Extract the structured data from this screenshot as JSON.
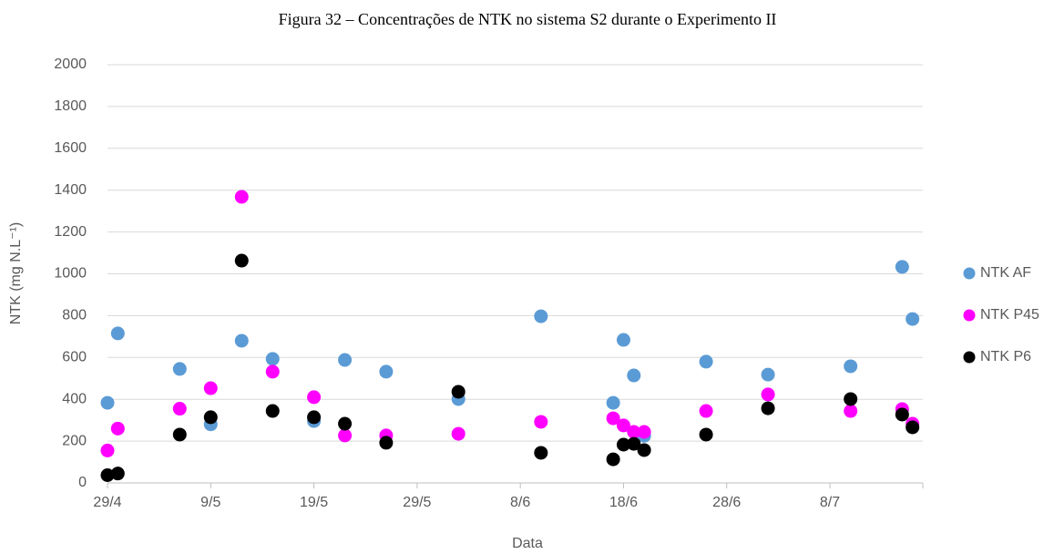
{
  "chart_data": {
    "type": "scatter",
    "title": "Figura 32 – Concentrações de NTK no sistema S2 durante o Experimento II",
    "x_label": "Data",
    "y_label": "NTK (mg N.L⁻¹)",
    "xlim": [
      "29/4",
      "17/7"
    ],
    "xticks": [
      "29/4",
      "9/5",
      "19/5",
      "29/5",
      "8/6",
      "18/6",
      "28/6",
      "8/7"
    ],
    "ylim": [
      0,
      2000
    ],
    "yticks": [
      0,
      200,
      400,
      600,
      800,
      1000,
      1200,
      1400,
      1600,
      1800,
      2000
    ],
    "grid": true,
    "legend": "right",
    "x": [
      "29/4",
      "30/4",
      "6/5",
      "9/5",
      "12/5",
      "15/5",
      "19/5",
      "22/5",
      "26/5",
      "2/6",
      "10/6",
      "17/6",
      "18/6",
      "19/6",
      "20/6",
      "26/6",
      "2/7",
      "10/7",
      "15/7",
      "16/7"
    ],
    "series": [
      {
        "name": "NTK AF",
        "color": "#5b9bd5",
        "values": [
          383,
          715,
          545,
          280,
          680,
          593,
          296,
          588,
          532,
          401,
          797,
          383,
          684,
          514,
          225,
          580,
          518,
          558,
          1033,
          784
        ]
      },
      {
        "name": "NTK P45",
        "color": "#ff00ff",
        "values": [
          155,
          260,
          355,
          453,
          1368,
          532,
          410,
          227,
          227,
          235,
          292,
          309,
          275,
          244,
          244,
          344,
          423,
          344,
          353,
          283
        ]
      },
      {
        "name": "NTK P6",
        "color": "#000000",
        "values": [
          37,
          45,
          231,
          314,
          1063,
          344,
          314,
          283,
          192,
          436,
          144,
          113,
          183,
          187,
          157,
          231,
          357,
          401,
          327,
          266
        ]
      }
    ]
  }
}
